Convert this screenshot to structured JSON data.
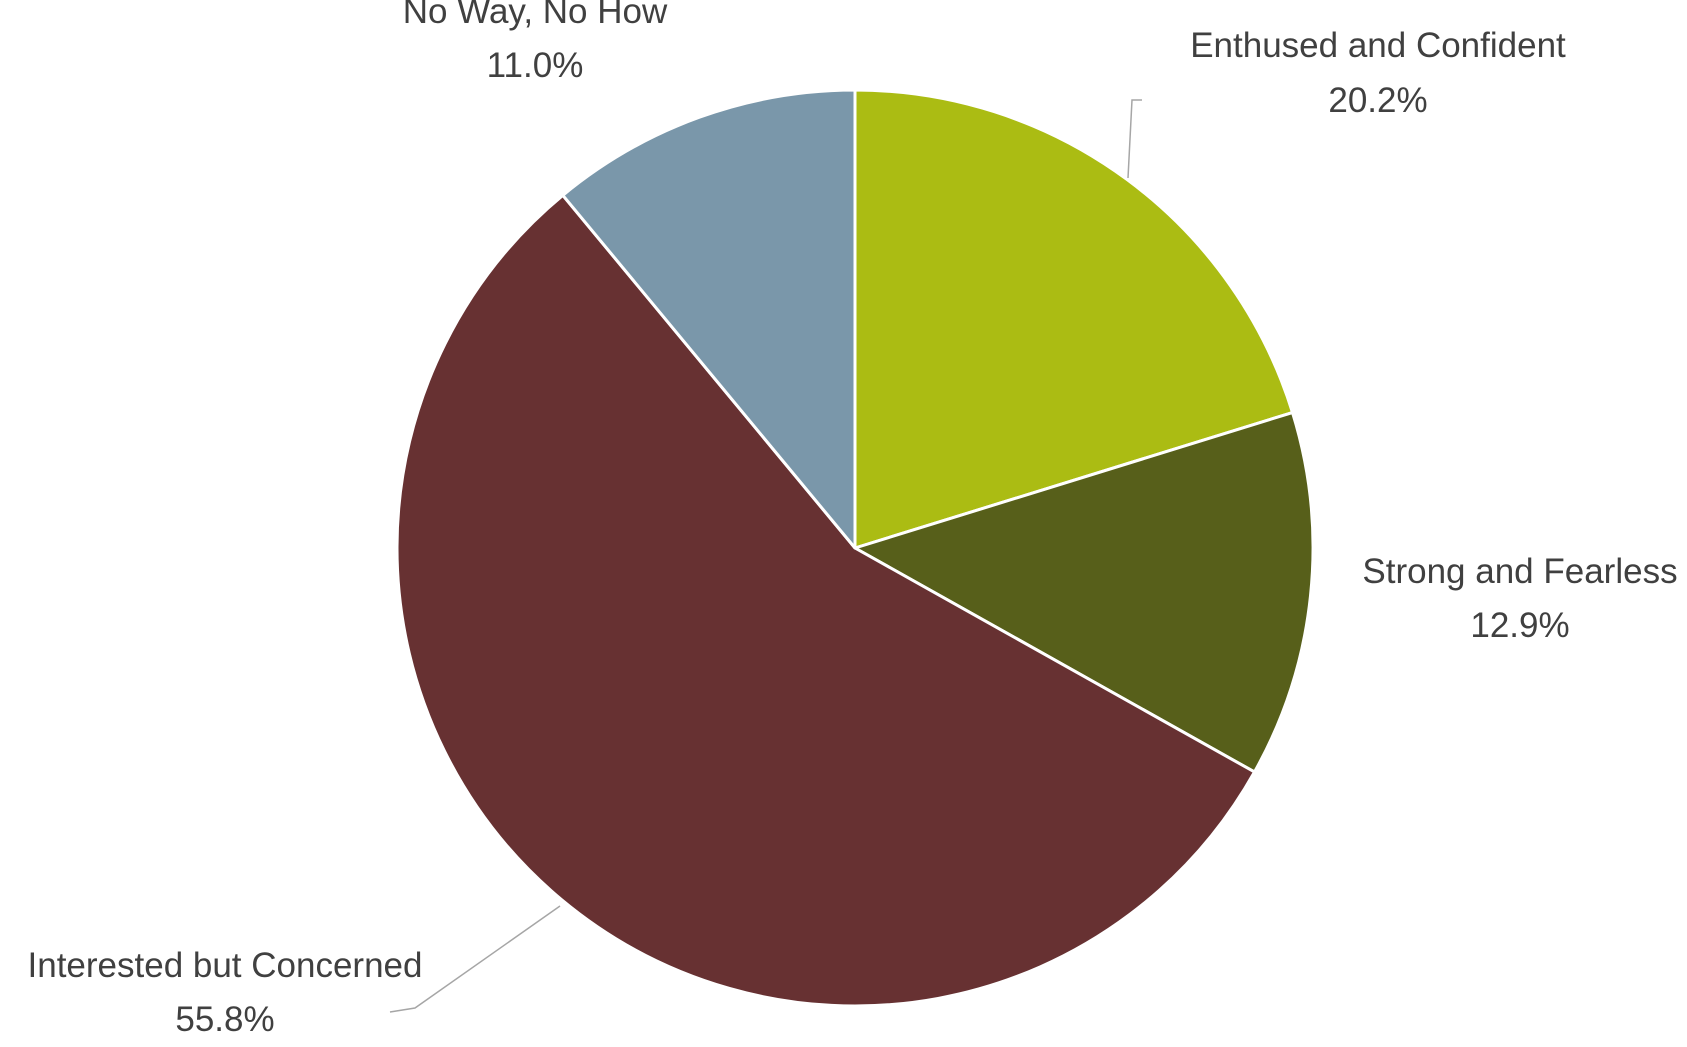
{
  "chart_data": {
    "type": "pie",
    "title": "",
    "slices": [
      {
        "label": "Enthused and Confident",
        "value": 20.2,
        "display": "20.2%",
        "color": "#abbc13"
      },
      {
        "label": "Strong and Fearless",
        "value": 12.9,
        "display": "12.9%",
        "color": "#575f1a"
      },
      {
        "label": "Interested but Concerned",
        "value": 55.8,
        "display": "55.8%",
        "color": "#673132"
      },
      {
        "label": "No Way, No How",
        "value": 11.0,
        "display": "11.0%",
        "color": "#7a97aa"
      }
    ],
    "start_angle": "12 o'clock",
    "direction": "clockwise",
    "legend": "none",
    "label_style": "outside with leader lines"
  }
}
